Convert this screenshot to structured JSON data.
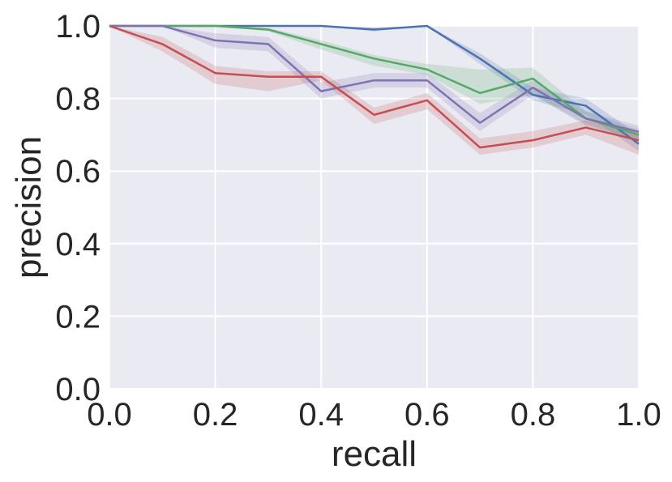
{
  "chart_data": {
    "type": "line",
    "title": "",
    "xlabel": "recall",
    "ylabel": "precision",
    "xlim": [
      0.0,
      1.0
    ],
    "ylim": [
      0.0,
      1.0
    ],
    "xticks": [
      "0.0",
      "0.2",
      "0.4",
      "0.6",
      "0.8",
      "1.0"
    ],
    "yticks": [
      "0.0",
      "0.2",
      "0.4",
      "0.6",
      "0.8",
      "1.0"
    ],
    "grid": true,
    "background": "#eaeaf2",
    "x": [
      0.0,
      0.1,
      0.2,
      0.3,
      0.4,
      0.5,
      0.6,
      0.7,
      0.8,
      0.9,
      1.0
    ],
    "series": [
      {
        "color": "#4c72b0",
        "values": [
          1.0,
          1.0,
          1.0,
          1.0,
          1.0,
          0.99,
          1.0,
          0.91,
          0.81,
          0.78,
          0.675
        ],
        "lower": [
          1.0,
          1.0,
          1.0,
          1.0,
          1.0,
          0.985,
          1.0,
          0.895,
          0.795,
          0.755,
          0.655
        ],
        "upper": [
          1.0,
          1.0,
          1.0,
          1.0,
          1.0,
          0.995,
          1.0,
          0.925,
          0.83,
          0.8,
          0.7
        ]
      },
      {
        "color": "#55a868",
        "values": [
          1.0,
          1.0,
          1.0,
          0.99,
          0.95,
          0.91,
          0.88,
          0.815,
          0.855,
          0.745,
          0.7
        ],
        "lower": [
          1.0,
          1.0,
          1.0,
          0.985,
          0.935,
          0.89,
          0.865,
          0.785,
          0.81,
          0.73,
          0.68
        ],
        "upper": [
          1.0,
          1.0,
          1.0,
          0.995,
          0.96,
          0.92,
          0.895,
          0.88,
          0.885,
          0.765,
          0.715
        ]
      },
      {
        "color": "#8172b2",
        "values": [
          1.0,
          1.0,
          0.96,
          0.95,
          0.82,
          0.85,
          0.85,
          0.733,
          0.83,
          0.745,
          0.708
        ],
        "lower": [
          1.0,
          1.0,
          0.94,
          0.93,
          0.8,
          0.83,
          0.83,
          0.71,
          0.81,
          0.725,
          0.69
        ],
        "upper": [
          1.0,
          1.0,
          0.98,
          0.97,
          0.845,
          0.87,
          0.87,
          0.76,
          0.85,
          0.765,
          0.725
        ]
      },
      {
        "color": "#c44e52",
        "values": [
          1.0,
          0.95,
          0.87,
          0.86,
          0.86,
          0.755,
          0.795,
          0.665,
          0.685,
          0.72,
          0.685
        ],
        "lower": [
          1.0,
          0.93,
          0.84,
          0.82,
          0.85,
          0.73,
          0.77,
          0.645,
          0.665,
          0.7,
          0.645
        ],
        "upper": [
          1.0,
          0.97,
          0.89,
          0.875,
          0.875,
          0.775,
          0.815,
          0.69,
          0.71,
          0.74,
          0.705
        ]
      }
    ]
  }
}
